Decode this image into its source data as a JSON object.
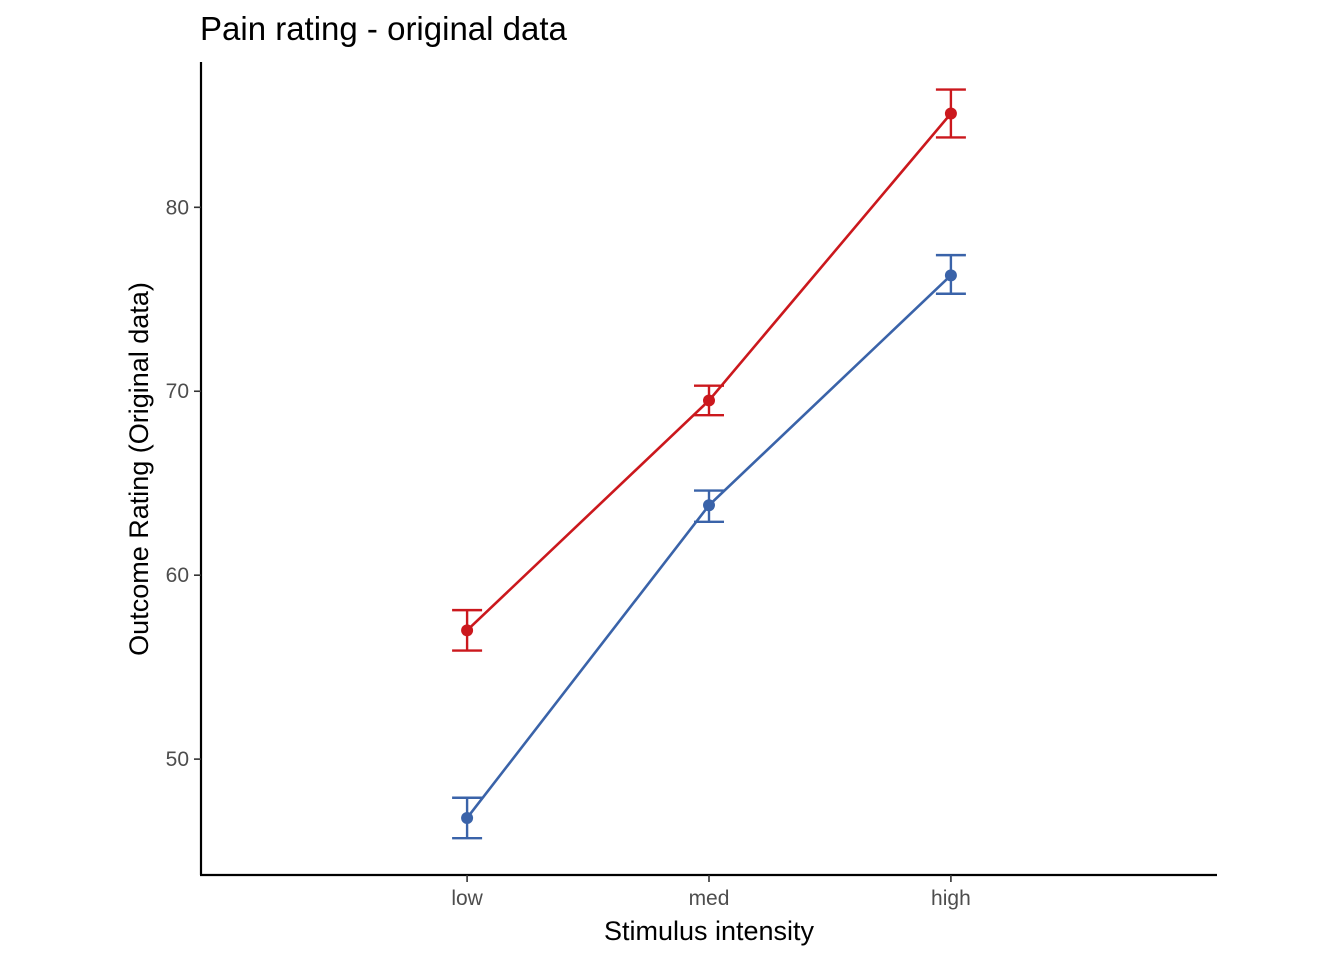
{
  "chart_data": {
    "type": "line",
    "title": "Pain rating - original data",
    "xlabel": "Stimulus intensity",
    "ylabel": "Outcome Rating (Original data)",
    "categories": [
      "low",
      "med",
      "high"
    ],
    "yticks": [
      50,
      60,
      70,
      80
    ],
    "ylim": [
      43.7,
      87.9
    ],
    "grid": false,
    "legend": "none",
    "series": [
      {
        "color": "#CB181D",
        "values": [
          57.0,
          69.5,
          85.1
        ],
        "error_low": [
          55.9,
          68.7,
          83.8
        ],
        "error_high": [
          58.1,
          70.3,
          86.4
        ]
      },
      {
        "color": "#3A63A9",
        "values": [
          46.8,
          63.8,
          76.3
        ],
        "error_low": [
          45.7,
          62.9,
          75.3
        ],
        "error_high": [
          47.9,
          64.6,
          77.4
        ]
      }
    ]
  }
}
